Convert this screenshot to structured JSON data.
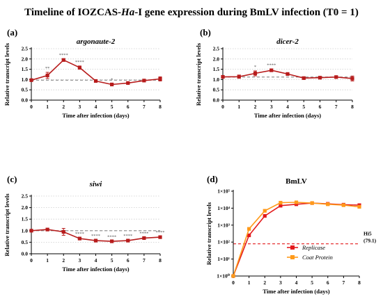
{
  "figure": {
    "title": "Timeline of IOZCAS-Ha-I gene expression during BmLV infection (T0 = 1)",
    "title_parts": [
      "Timeline of IOZCAS-",
      "Ha",
      "-I gene expression during BmLV infection (T0 = 1)"
    ]
  },
  "colors": {
    "series_main": "#b71c1c",
    "replicase": "#e31a1c",
    "coat_protein": "#ff9a1a",
    "reference_line": "#e31a1c",
    "baseline_dashed": "#888888",
    "grid": "#cccccc",
    "significance": "#555555"
  },
  "chart_data": [
    {
      "panel_label": "(a)",
      "type": "line",
      "title": "argonaute-2",
      "title_italic": true,
      "xlabel": "Time after infection (days)",
      "ylabel": "Relative transcript levels",
      "x": [
        0,
        1,
        2,
        3,
        4,
        5,
        6,
        7,
        8
      ],
      "xlim": [
        0,
        8
      ],
      "xticks": [
        "0",
        "1",
        "2",
        "3",
        "4",
        "5",
        "6",
        "7",
        "8"
      ],
      "ylim": [
        0,
        2.5
      ],
      "yticks": [
        "0.0",
        "0.5",
        "1.0",
        "1.5",
        "2.0",
        "2.5"
      ],
      "ytick_values": [
        0,
        0.5,
        1.0,
        1.5,
        2.0,
        2.5
      ],
      "baseline": 0.97,
      "series": [
        {
          "values": [
            0.97,
            1.2,
            1.95,
            1.58,
            0.93,
            0.76,
            0.83,
            0.95,
            1.03
          ],
          "errors": [
            0.05,
            0.15,
            0.05,
            0.08,
            0.03,
            0.04,
            0.04,
            0.03,
            0.1
          ]
        }
      ],
      "significance": [
        {
          "x": 1,
          "label": "**"
        },
        {
          "x": 2,
          "label": "****"
        },
        {
          "x": 3,
          "label": "****"
        },
        {
          "x": 5,
          "label": "*"
        }
      ],
      "grid": "horizontal dotted"
    },
    {
      "panel_label": "(b)",
      "type": "line",
      "title": "dicer-2",
      "title_italic": true,
      "xlabel": "Time after infection (days)",
      "ylabel": "Relative transcript levels",
      "x": [
        0,
        1,
        2,
        3,
        4,
        5,
        6,
        7,
        8
      ],
      "xlim": [
        0,
        8
      ],
      "xticks": [
        "0",
        "1",
        "2",
        "3",
        "4",
        "5",
        "6",
        "7",
        "8"
      ],
      "ylim": [
        0,
        2.5
      ],
      "yticks": [
        "0.0",
        "0.5",
        "1.0",
        "1.5",
        "2.0",
        "2.5"
      ],
      "ytick_values": [
        0,
        0.5,
        1.0,
        1.5,
        2.0,
        2.5
      ],
      "baseline": 1.12,
      "series": [
        {
          "values": [
            1.13,
            1.14,
            1.3,
            1.45,
            1.27,
            1.07,
            1.09,
            1.12,
            1.05
          ],
          "errors": [
            0.05,
            0.08,
            0.12,
            0.06,
            0.04,
            0.05,
            0.05,
            0.03,
            0.12
          ]
        }
      ],
      "significance": [
        {
          "x": 2,
          "label": "*"
        },
        {
          "x": 3,
          "label": "****"
        }
      ],
      "grid": "horizontal dotted"
    },
    {
      "panel_label": "(c)",
      "type": "line",
      "title": "siwi",
      "title_italic": true,
      "xlabel": "Time after infection (days)",
      "ylabel": "Relative transcript levels",
      "x": [
        0,
        1,
        2,
        3,
        4,
        5,
        6,
        7,
        8
      ],
      "xlim": [
        0,
        8
      ],
      "xticks": [
        "0",
        "1",
        "2",
        "3",
        "4",
        "5",
        "6",
        "7",
        "8"
      ],
      "ylim": [
        0,
        2.5
      ],
      "yticks": [
        "0.0",
        "0.5",
        "1.0",
        "1.5",
        "2.0",
        "2.5"
      ],
      "ytick_values": [
        0,
        0.5,
        1.0,
        1.5,
        2.0,
        2.5
      ],
      "baseline": 1.0,
      "series": [
        {
          "values": [
            1.0,
            1.05,
            0.95,
            0.66,
            0.57,
            0.54,
            0.57,
            0.68,
            0.72
          ],
          "errors": [
            0.05,
            0.04,
            0.15,
            0.03,
            0.03,
            0.02,
            0.03,
            0.03,
            0.04
          ]
        }
      ],
      "significance": [
        {
          "x": 3,
          "label": "****"
        },
        {
          "x": 4,
          "label": "****"
        },
        {
          "x": 5,
          "label": "****"
        },
        {
          "x": 6,
          "label": "****"
        },
        {
          "x": 7,
          "label": "****"
        },
        {
          "x": 8,
          "label": "****"
        }
      ],
      "grid": "horizontal dotted"
    },
    {
      "panel_label": "(d)",
      "type": "line",
      "title": "BmLV",
      "title_italic": false,
      "xlabel": "Time after infection (days)",
      "ylabel": "Relative transcript levels",
      "x": [
        0,
        1,
        2,
        3,
        4,
        5,
        6,
        7,
        8
      ],
      "xlim": [
        0,
        8
      ],
      "xticks": [
        "0",
        "1",
        "2",
        "3",
        "4",
        "5",
        "6",
        "7",
        "8"
      ],
      "yscale": "log",
      "ylim": [
        1,
        100000
      ],
      "yticks": [
        "1×10⁰",
        "1×10¹",
        "1×10²",
        "1×10³",
        "1×10⁴",
        "1×10⁵"
      ],
      "ytick_values": [
        1,
        10,
        100,
        1000,
        10000,
        100000
      ],
      "reference_line": {
        "value": 79.1,
        "label": "Hi5",
        "sublabel": "(79.1)"
      },
      "series": [
        {
          "name": "Replicase",
          "values": [
            1,
            250,
            3500,
            14000,
            17000,
            20000,
            18000,
            16000,
            15000
          ]
        },
        {
          "name": "Coat Protein",
          "values": [
            1,
            600,
            7000,
            21000,
            22000,
            20000,
            17000,
            15000,
            12000
          ]
        }
      ],
      "legend": "bottom-right",
      "grid": "none"
    }
  ]
}
